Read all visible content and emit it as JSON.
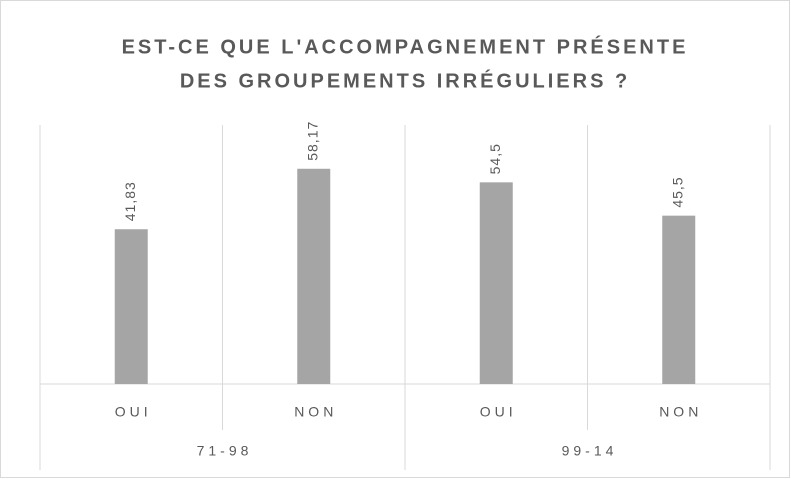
{
  "chart_data": {
    "type": "bar",
    "title": [
      "EST-CE QUE L'ACCOMPAGNEMENT PRÉSENTE",
      "DES GROUPEMENTS IRRÉGULIERS ?"
    ],
    "categories": [
      "OUI",
      "NON",
      "OUI",
      "NON"
    ],
    "groups": [
      "71-98",
      "99-14"
    ],
    "values": [
      41.83,
      58.17,
      54.5,
      45.5
    ],
    "value_labels": [
      "41,83",
      "58,17",
      "54,5",
      "45,5"
    ],
    "color": "#a5a5a5",
    "ylim": [
      0,
      70
    ]
  }
}
